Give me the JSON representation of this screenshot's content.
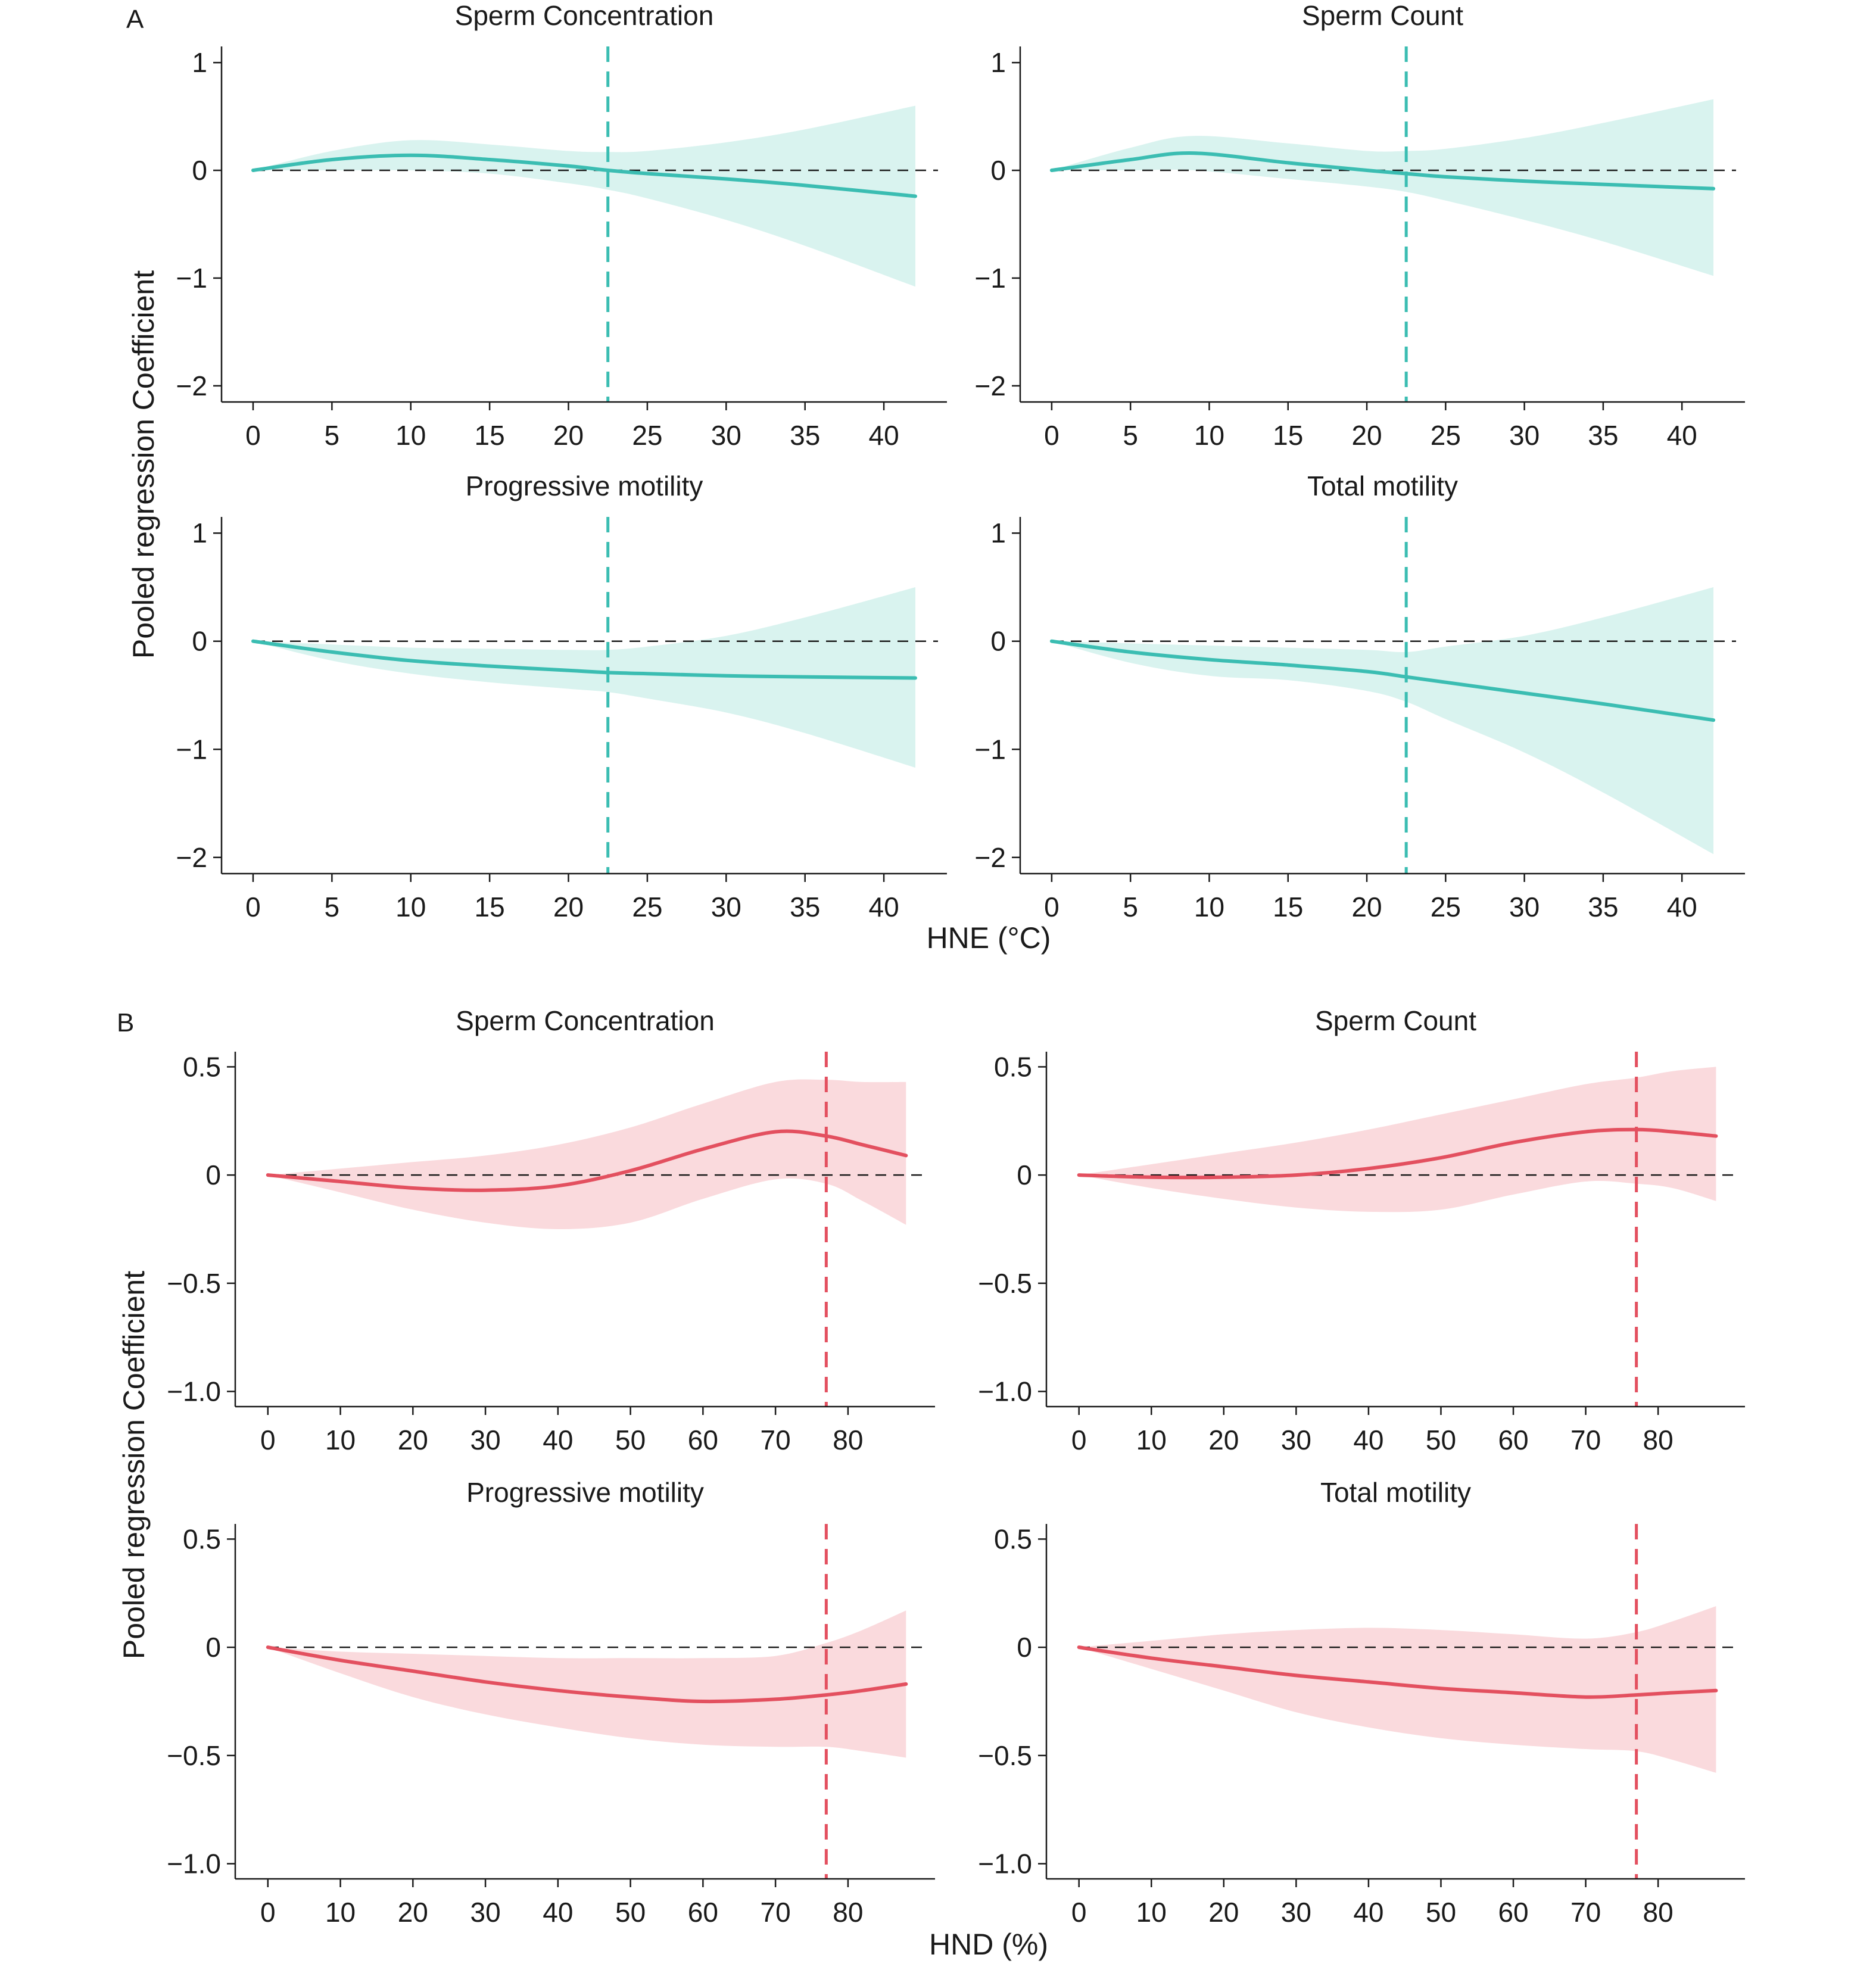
{
  "colors": {
    "teal": "#3bbdb2",
    "teal_fill": "#d9f3ef",
    "red": "#e3505f",
    "red_fill": "#fadadd",
    "axis": "#1a1a1a"
  },
  "panel_A": {
    "tag": "A",
    "xlabel": "HNE (°C)",
    "ylabel": "Pooled regression Coefficient",
    "xticks": [
      "0",
      "5",
      "10",
      "15",
      "20",
      "25",
      "30",
      "35",
      "40"
    ],
    "yticks": [
      "1",
      "0",
      "−1",
      "−2"
    ]
  },
  "panel_B": {
    "tag": "B",
    "xlabel": "HND (%)",
    "ylabel": "Pooled regression Coefficient",
    "xticks": [
      "0",
      "10",
      "20",
      "30",
      "40",
      "50",
      "60",
      "70",
      "80"
    ],
    "yticks": [
      "0.5",
      "0",
      "−0.5",
      "−1.0"
    ]
  },
  "chart_data": [
    {
      "type": "line",
      "group": "A",
      "title": "Sperm Concentration",
      "xlim": [
        -2,
        44
      ],
      "ylim": [
        -2.15,
        1.15
      ],
      "xticks": [
        0,
        5,
        10,
        15,
        20,
        25,
        30,
        35,
        40
      ],
      "yticks": [
        1,
        0,
        -1,
        -2
      ],
      "threshold_x": 22.5,
      "series": [
        {
          "x": [
            0,
            5,
            10,
            15,
            20,
            22.5,
            25,
            30,
            35,
            42
          ],
          "y": [
            0,
            0.1,
            0.14,
            0.1,
            0.04,
            0,
            -0.03,
            -0.08,
            -0.14,
            -0.24
          ],
          "lower": [
            0,
            0,
            0,
            -0.03,
            -0.12,
            -0.18,
            -0.26,
            -0.46,
            -0.7,
            -1.08
          ],
          "upper": [
            0,
            0.18,
            0.28,
            0.24,
            0.18,
            0.17,
            0.18,
            0.26,
            0.38,
            0.6
          ]
        }
      ]
    },
    {
      "type": "line",
      "group": "A",
      "title": "Sperm Count",
      "xlim": [
        -2,
        44
      ],
      "ylim": [
        -2.15,
        1.15
      ],
      "xticks": [
        0,
        5,
        10,
        15,
        20,
        25,
        30,
        35,
        40
      ],
      "yticks": [
        1,
        0,
        -1,
        -2
      ],
      "threshold_x": 22.5,
      "series": [
        {
          "x": [
            0,
            5,
            9,
            15,
            20,
            22.5,
            25,
            30,
            35,
            42
          ],
          "y": [
            0,
            0.1,
            0.16,
            0.07,
            0,
            -0.03,
            -0.06,
            -0.1,
            -0.13,
            -0.17
          ],
          "lower": [
            0,
            0,
            0,
            -0.08,
            -0.15,
            -0.2,
            -0.28,
            -0.46,
            -0.66,
            -0.98
          ],
          "upper": [
            0,
            0.21,
            0.32,
            0.25,
            0.18,
            0.18,
            0.2,
            0.3,
            0.44,
            0.66
          ]
        }
      ]
    },
    {
      "type": "line",
      "group": "A",
      "title": "Progressive motility",
      "xlim": [
        -2,
        44
      ],
      "ylim": [
        -2.15,
        1.15
      ],
      "xticks": [
        0,
        5,
        10,
        15,
        20,
        25,
        30,
        35,
        40
      ],
      "yticks": [
        1,
        0,
        -1,
        -2
      ],
      "threshold_x": 22.5,
      "series": [
        {
          "x": [
            0,
            5,
            10,
            15,
            20,
            22.5,
            25,
            30,
            35,
            42
          ],
          "y": [
            0,
            -0.1,
            -0.18,
            -0.23,
            -0.27,
            -0.29,
            -0.3,
            -0.32,
            -0.33,
            -0.34
          ],
          "lower": [
            0,
            -0.18,
            -0.3,
            -0.38,
            -0.44,
            -0.47,
            -0.53,
            -0.66,
            -0.85,
            -1.17
          ],
          "upper": [
            0,
            -0.03,
            -0.06,
            -0.07,
            -0.08,
            -0.08,
            -0.05,
            0.05,
            0.22,
            0.5
          ]
        }
      ]
    },
    {
      "type": "line",
      "group": "A",
      "title": "Total motility",
      "xlim": [
        -2,
        44
      ],
      "ylim": [
        -2.15,
        1.15
      ],
      "xticks": [
        0,
        5,
        10,
        15,
        20,
        25,
        30,
        35,
        40
      ],
      "yticks": [
        1,
        0,
        -1,
        -2
      ],
      "threshold_x": 22.5,
      "series": [
        {
          "x": [
            0,
            5,
            10,
            15,
            20,
            22.5,
            25,
            30,
            35,
            42
          ],
          "y": [
            0,
            -0.1,
            -0.17,
            -0.22,
            -0.28,
            -0.33,
            -0.38,
            -0.48,
            -0.58,
            -0.73
          ],
          "lower": [
            0,
            -0.2,
            -0.32,
            -0.36,
            -0.46,
            -0.56,
            -0.72,
            -1.03,
            -1.4,
            -1.97
          ],
          "upper": [
            0,
            -0.02,
            -0.04,
            -0.06,
            -0.08,
            -0.1,
            -0.05,
            0.05,
            0.22,
            0.5
          ]
        }
      ]
    },
    {
      "type": "line",
      "group": "B",
      "title": "Sperm Concentration",
      "xlim": [
        -4.5,
        92
      ],
      "ylim": [
        -1.07,
        0.57
      ],
      "xticks": [
        0,
        10,
        20,
        30,
        40,
        50,
        60,
        70,
        80
      ],
      "yticks": [
        0.5,
        0,
        -0.5,
        -1.0
      ],
      "threshold_x": 77,
      "series": [
        {
          "x": [
            0,
            10,
            20,
            30,
            40,
            50,
            60,
            70,
            77,
            82,
            88
          ],
          "y": [
            0,
            -0.03,
            -0.06,
            -0.07,
            -0.05,
            0.02,
            0.12,
            0.2,
            0.18,
            0.14,
            0.09
          ],
          "lower": [
            0,
            -0.08,
            -0.16,
            -0.22,
            -0.25,
            -0.22,
            -0.11,
            -0.02,
            -0.04,
            -0.12,
            -0.23
          ],
          "upper": [
            0,
            0.03,
            0.06,
            0.09,
            0.14,
            0.22,
            0.33,
            0.43,
            0.44,
            0.43,
            0.43
          ]
        }
      ]
    },
    {
      "type": "line",
      "group": "B",
      "title": "Sperm Count",
      "xlim": [
        -4.5,
        92
      ],
      "ylim": [
        -1.07,
        0.57
      ],
      "xticks": [
        0,
        10,
        20,
        30,
        40,
        50,
        60,
        70,
        80
      ],
      "yticks": [
        0.5,
        0,
        -0.5,
        -1.0
      ],
      "threshold_x": 77,
      "series": [
        {
          "x": [
            0,
            10,
            20,
            30,
            40,
            50,
            60,
            70,
            77,
            82,
            88
          ],
          "y": [
            0,
            -0.01,
            -0.01,
            0,
            0.03,
            0.08,
            0.15,
            0.2,
            0.21,
            0.2,
            0.18
          ],
          "lower": [
            0,
            -0.06,
            -0.11,
            -0.15,
            -0.17,
            -0.16,
            -0.09,
            -0.03,
            -0.04,
            -0.06,
            -0.12
          ],
          "upper": [
            0,
            0.05,
            0.1,
            0.15,
            0.21,
            0.28,
            0.35,
            0.42,
            0.45,
            0.48,
            0.5
          ]
        }
      ]
    },
    {
      "type": "line",
      "group": "B",
      "title": "Progressive motility",
      "xlim": [
        -4.5,
        92
      ],
      "ylim": [
        -1.07,
        0.57
      ],
      "xticks": [
        0,
        10,
        20,
        30,
        40,
        50,
        60,
        70,
        80
      ],
      "yticks": [
        0.5,
        0,
        -0.5,
        -1.0
      ],
      "threshold_x": 77,
      "series": [
        {
          "x": [
            0,
            10,
            20,
            30,
            40,
            50,
            60,
            70,
            77,
            82,
            88
          ],
          "y": [
            0,
            -0.06,
            -0.11,
            -0.16,
            -0.2,
            -0.23,
            -0.25,
            -0.24,
            -0.22,
            -0.2,
            -0.17
          ],
          "lower": [
            0,
            -0.12,
            -0.23,
            -0.31,
            -0.37,
            -0.42,
            -0.45,
            -0.46,
            -0.46,
            -0.48,
            -0.51
          ],
          "upper": [
            0,
            -0.02,
            -0.03,
            -0.04,
            -0.05,
            -0.05,
            -0.05,
            -0.04,
            0.02,
            0.08,
            0.17
          ]
        }
      ]
    },
    {
      "type": "line",
      "group": "B",
      "title": "Total motility",
      "xlim": [
        -4.5,
        92
      ],
      "ylim": [
        -1.07,
        0.57
      ],
      "xticks": [
        0,
        10,
        20,
        30,
        40,
        50,
        60,
        70,
        80
      ],
      "yticks": [
        0.5,
        0,
        -0.5,
        -1.0
      ],
      "threshold_x": 77,
      "series": [
        {
          "x": [
            0,
            10,
            20,
            30,
            40,
            50,
            60,
            70,
            77,
            82,
            88
          ],
          "y": [
            0,
            -0.05,
            -0.09,
            -0.13,
            -0.16,
            -0.19,
            -0.21,
            -0.23,
            -0.22,
            -0.21,
            -0.2
          ],
          "lower": [
            0,
            -0.1,
            -0.2,
            -0.3,
            -0.37,
            -0.42,
            -0.45,
            -0.47,
            -0.48,
            -0.52,
            -0.58
          ],
          "upper": [
            0,
            0.03,
            0.06,
            0.08,
            0.09,
            0.08,
            0.06,
            0.04,
            0.07,
            0.12,
            0.19
          ]
        }
      ]
    }
  ]
}
